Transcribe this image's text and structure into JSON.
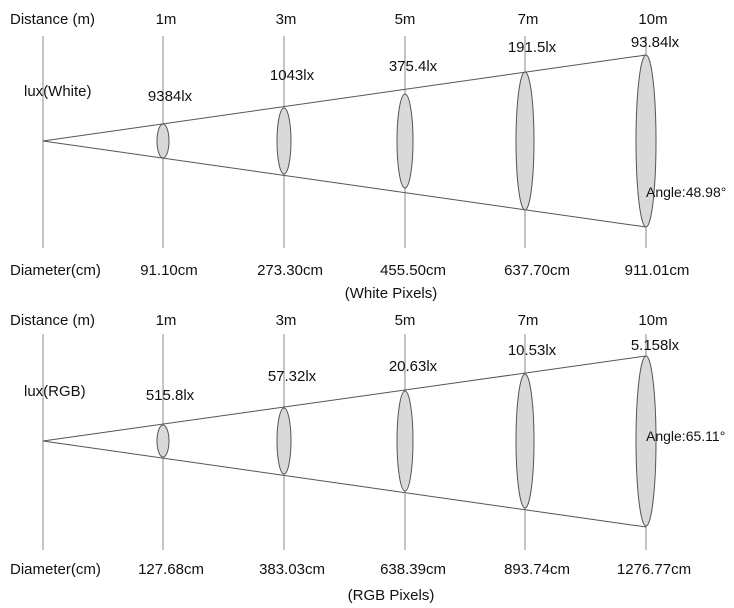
{
  "panels": [
    {
      "distance_header": "Distance (m)",
      "lux_header": "lux(White)",
      "diameter_header": "Diameter(cm)",
      "caption": "(White Pixels)",
      "angle": "Angle:48.98°",
      "columns": [
        {
          "distance": "1m",
          "lux": "9384lx",
          "diameter": "91.10cm"
        },
        {
          "distance": "3m",
          "lux": "1043lx",
          "diameter": "273.30cm"
        },
        {
          "distance": "5m",
          "lux": "375.4lx",
          "diameter": "455.50cm"
        },
        {
          "distance": "7m",
          "lux": "191.5lx",
          "diameter": "637.70cm"
        },
        {
          "distance": "10m",
          "lux": "93.84lx",
          "diameter": "911.01cm"
        }
      ]
    },
    {
      "distance_header": "Distance (m)",
      "lux_header": "lux(RGB)",
      "diameter_header": "Diameter(cm)",
      "caption": "(RGB Pixels)",
      "angle": "Angle:65.11°",
      "columns": [
        {
          "distance": "1m",
          "lux": "515.8lx",
          "diameter": "127.68cm"
        },
        {
          "distance": "3m",
          "lux": "57.32lx",
          "diameter": "383.03cm"
        },
        {
          "distance": "5m",
          "lux": "20.63lx",
          "diameter": "638.39cm"
        },
        {
          "distance": "7m",
          "lux": "10.53lx",
          "diameter": "893.74cm"
        },
        {
          "distance": "10m",
          "lux": "5.158lx",
          "diameter": "1276.77cm"
        }
      ]
    }
  ],
  "colors": {
    "ellipse_fill": "#d9d9d9",
    "line": "#555555",
    "text": "#111111"
  }
}
